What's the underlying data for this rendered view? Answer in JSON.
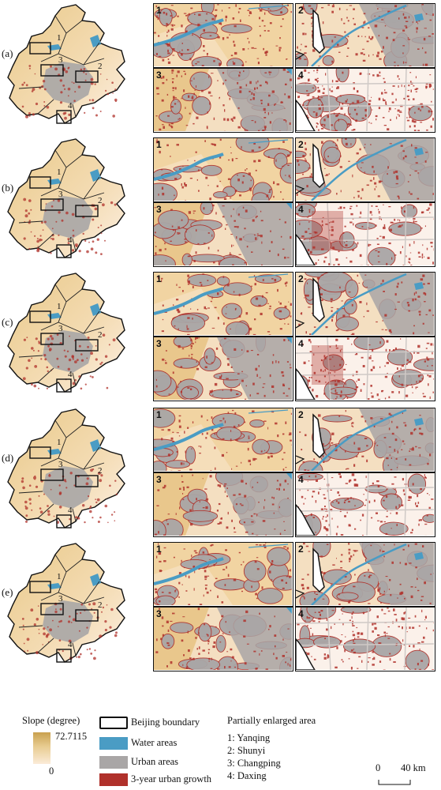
{
  "rows": [
    {
      "label": "(a)"
    },
    {
      "label": "(b)"
    },
    {
      "label": "(c)"
    },
    {
      "label": "(d)"
    },
    {
      "label": "(e)"
    }
  ],
  "panels": [
    {
      "number": "1"
    },
    {
      "number": "2"
    },
    {
      "number": "3"
    },
    {
      "number": "4"
    }
  ],
  "overview_box_labels": [
    "1",
    "2",
    "3",
    "4"
  ],
  "legend": {
    "slope_title": "Slope (degree)",
    "slope_max": "72.7115",
    "slope_min": "0",
    "items": [
      {
        "label": "Beijing boundary",
        "color": "#ffffff"
      },
      {
        "label": "Water areas",
        "color": "#4a9cc4"
      },
      {
        "label": "Urban areas",
        "color": "#a9a6a6"
      },
      {
        "label": "3-year urban growth",
        "color": "#b0312b"
      }
    ],
    "area_title": "Partially enlarged area",
    "areas": [
      "1: Yanqing",
      "2: Shunyi",
      "3: Changping",
      "4: Daxing"
    ]
  },
  "scale_bar": {
    "start": "0",
    "end": "40 km"
  },
  "colors": {
    "slope_high": "#c9a14f",
    "slope_low": "#fbebd8",
    "water": "#4a9cc4",
    "urban": "#a9a6a6",
    "growth": "#b0312b",
    "boundary": "#111111"
  }
}
